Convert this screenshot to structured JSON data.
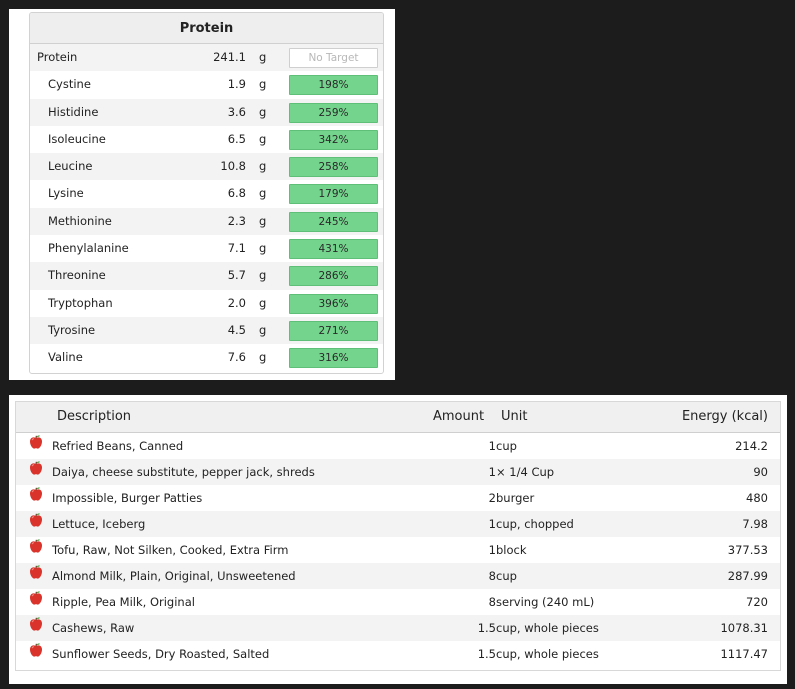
{
  "protein_panel": {
    "title": "Protein",
    "rows": [
      {
        "name": "Protein",
        "amount": "241.1",
        "unit": "g",
        "target": "No Target",
        "has_target": false
      },
      {
        "name": "Cystine",
        "amount": "1.9",
        "unit": "g",
        "target": "198%",
        "has_target": true
      },
      {
        "name": "Histidine",
        "amount": "3.6",
        "unit": "g",
        "target": "259%",
        "has_target": true
      },
      {
        "name": "Isoleucine",
        "amount": "6.5",
        "unit": "g",
        "target": "342%",
        "has_target": true
      },
      {
        "name": "Leucine",
        "amount": "10.8",
        "unit": "g",
        "target": "258%",
        "has_target": true
      },
      {
        "name": "Lysine",
        "amount": "6.8",
        "unit": "g",
        "target": "179%",
        "has_target": true
      },
      {
        "name": "Methionine",
        "amount": "2.3",
        "unit": "g",
        "target": "245%",
        "has_target": true
      },
      {
        "name": "Phenylalanine",
        "amount": "7.1",
        "unit": "g",
        "target": "431%",
        "has_target": true
      },
      {
        "name": "Threonine",
        "amount": "5.7",
        "unit": "g",
        "target": "286%",
        "has_target": true
      },
      {
        "name": "Tryptophan",
        "amount": "2.0",
        "unit": "g",
        "target": "396%",
        "has_target": true
      },
      {
        "name": "Tyrosine",
        "amount": "4.5",
        "unit": "g",
        "target": "271%",
        "has_target": true
      },
      {
        "name": "Valine",
        "amount": "7.6",
        "unit": "g",
        "target": "316%",
        "has_target": true
      }
    ],
    "bar_color": "#74d38c"
  },
  "food_table": {
    "columns": {
      "description": "Description",
      "amount": "Amount",
      "unit": "Unit",
      "energy": "Energy (kcal)"
    },
    "rows": [
      {
        "icon": "apple-icon",
        "description": "Refried Beans, Canned",
        "amount": "1",
        "unit": "cup",
        "energy": "214.2"
      },
      {
        "icon": "apple-icon",
        "description": "Daiya, cheese substitute, pepper jack, shreds",
        "amount": "1",
        "unit": "× 1/4 Cup",
        "energy": "90"
      },
      {
        "icon": "apple-icon",
        "description": "Impossible, Burger Patties",
        "amount": "2",
        "unit": "burger",
        "energy": "480"
      },
      {
        "icon": "apple-icon",
        "description": "Lettuce, Iceberg",
        "amount": "1",
        "unit": "cup, chopped",
        "energy": "7.98"
      },
      {
        "icon": "apple-icon",
        "description": "Tofu, Raw, Not Silken, Cooked, Extra Firm",
        "amount": "1",
        "unit": "block",
        "energy": "377.53"
      },
      {
        "icon": "apple-icon",
        "description": "Almond Milk, Plain, Original, Unsweetened",
        "amount": "8",
        "unit": "cup",
        "energy": "287.99"
      },
      {
        "icon": "apple-icon",
        "description": "Ripple, Pea Milk, Original",
        "amount": "8",
        "unit": "serving (240 mL)",
        "energy": "720"
      },
      {
        "icon": "apple-icon",
        "description": "Cashews, Raw",
        "amount": "1.5",
        "unit": "cup, whole pieces",
        "energy": "1078.31"
      },
      {
        "icon": "apple-icon",
        "description": "Sunflower Seeds, Dry Roasted, Salted",
        "amount": "1.5",
        "unit": "cup, whole pieces",
        "energy": "1117.47"
      }
    ]
  }
}
